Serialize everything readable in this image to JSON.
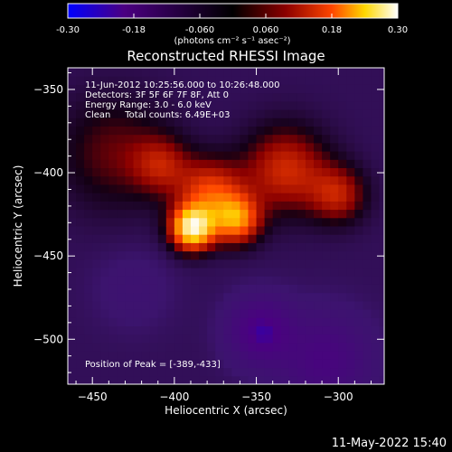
{
  "chart_data": {
    "type": "heatmap",
    "title": "Reconstructed RHESSI Image",
    "xlabel": "Heliocentric X (arcsec)",
    "ylabel": "Heliocentric Y (arcsec)",
    "xlim": [
      -465,
      -272
    ],
    "ylim": [
      -527,
      -337
    ],
    "xticks": [
      -450,
      -400,
      -350,
      -300
    ],
    "yticks": [
      -350,
      -400,
      -450,
      -500
    ],
    "colorbar": {
      "range": [
        -0.3,
        0.3
      ],
      "ticks": [
        -0.3,
        -0.18,
        -0.06,
        0.06,
        0.18,
        0.3
      ],
      "tick_labels": [
        "-0.30",
        "-0.18",
        "-0.060",
        "0.060",
        "0.18",
        "0.30"
      ],
      "unit": "(photons cm⁻² s⁻¹ asec⁻²)",
      "colors": [
        "#0000ff",
        "#4b0082",
        "#000000",
        "#8b0000",
        "#ff4500",
        "#ffd700",
        "#ffffff"
      ]
    },
    "sources": [
      {
        "x": -389,
        "y": -433,
        "peak": 0.3,
        "width": 9
      },
      {
        "x": -362,
        "y": -428,
        "peak": 0.19,
        "width": 10
      },
      {
        "x": -378,
        "y": -412,
        "peak": 0.15,
        "width": 14
      },
      {
        "x": -332,
        "y": -398,
        "peak": 0.13,
        "width": 18
      },
      {
        "x": -300,
        "y": -413,
        "peak": 0.11,
        "width": 12
      },
      {
        "x": -437,
        "y": -388,
        "peak": 0.07,
        "width": 24
      },
      {
        "x": -408,
        "y": -395,
        "peak": 0.09,
        "width": 12
      },
      {
        "x": -347,
        "y": -495,
        "peak": -0.17,
        "width": 13
      },
      {
        "x": -308,
        "y": -512,
        "peak": -0.12,
        "width": 18
      },
      {
        "x": -425,
        "y": -470,
        "peak": -0.03,
        "width": 16
      }
    ],
    "annotations": {
      "line1": "11-Jun-2012 10:25:56.000 to 10:26:48.000",
      "line2": "Detectors: 3F 5F 6F 7F 8F, Att 0",
      "line3": "Energy Range: 3.0 - 6.0 keV",
      "line4": "Clean     Total counts: 6.49E+03",
      "peak": "Position of Peak = [-389,-433]"
    }
  },
  "footer": {
    "timestamp": "11-May-2022 15:40"
  }
}
